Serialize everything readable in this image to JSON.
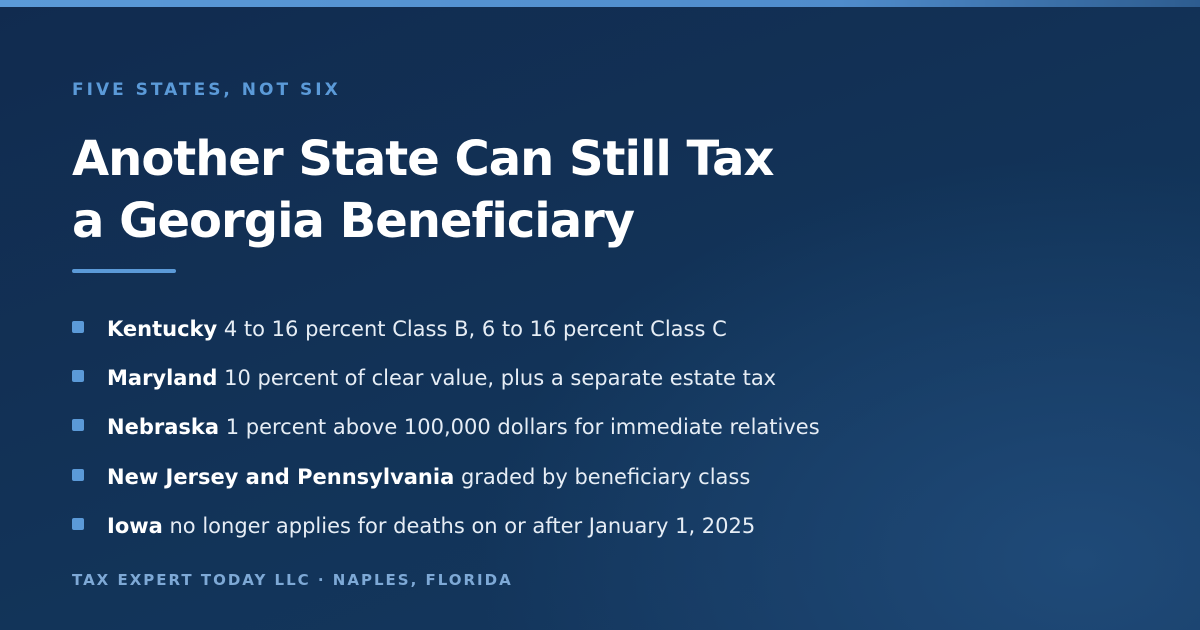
{
  "eyebrow": "FIVE STATES, NOT SIX",
  "title_lines": [
    "Another State Can Still Tax",
    "a Georgia Beneficiary"
  ],
  "items": [
    {
      "label": "Kentucky",
      "text": "4 to 16 percent Class B, 6 to 16 percent Class C"
    },
    {
      "label": "Maryland",
      "text": "10 percent of clear value, plus a separate estate tax"
    },
    {
      "label": "Nebraska",
      "text": "1 percent above 100,000 dollars for immediate relatives"
    },
    {
      "label": "New Jersey and Pennsylvania",
      "text": "graded by beneficiary class"
    },
    {
      "label": "Iowa",
      "text": "no longer applies for deaths on or after January 1, 2025"
    }
  ],
  "footer": "TAX EXPERT TODAY LLC · NAPLES, FLORIDA"
}
